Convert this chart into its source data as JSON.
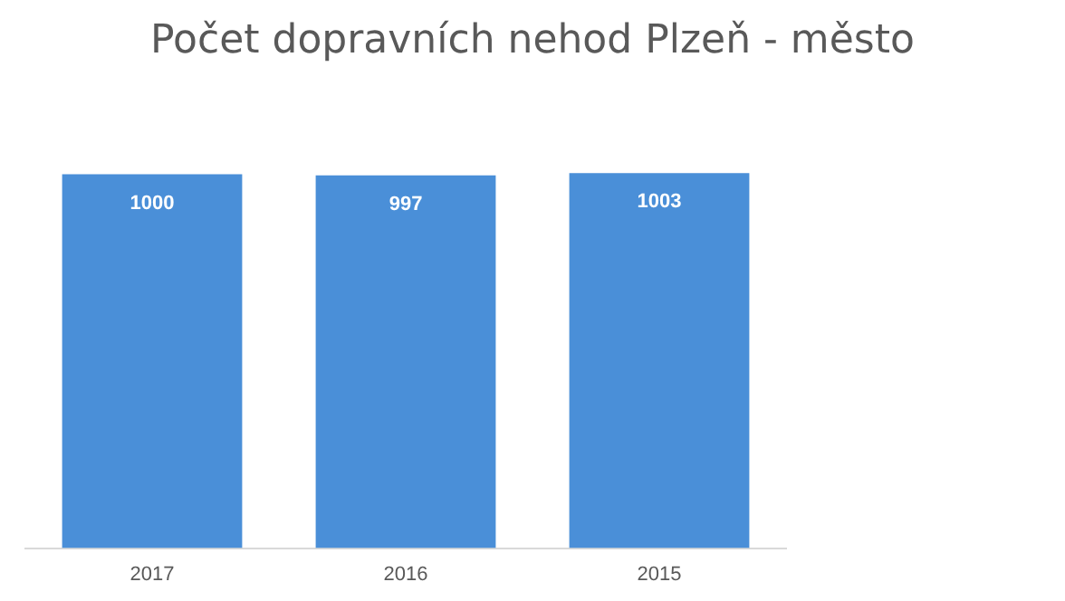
{
  "chart_data": {
    "type": "bar",
    "title": "Počet dopravních nehod Plzeň - město",
    "categories": [
      "2017",
      "2016",
      "2015"
    ],
    "values": [
      1000,
      997,
      1003
    ],
    "color": "#4a8fd8",
    "tick_labels": "x",
    "grid": false,
    "legend": false,
    "data_labels": true
  }
}
